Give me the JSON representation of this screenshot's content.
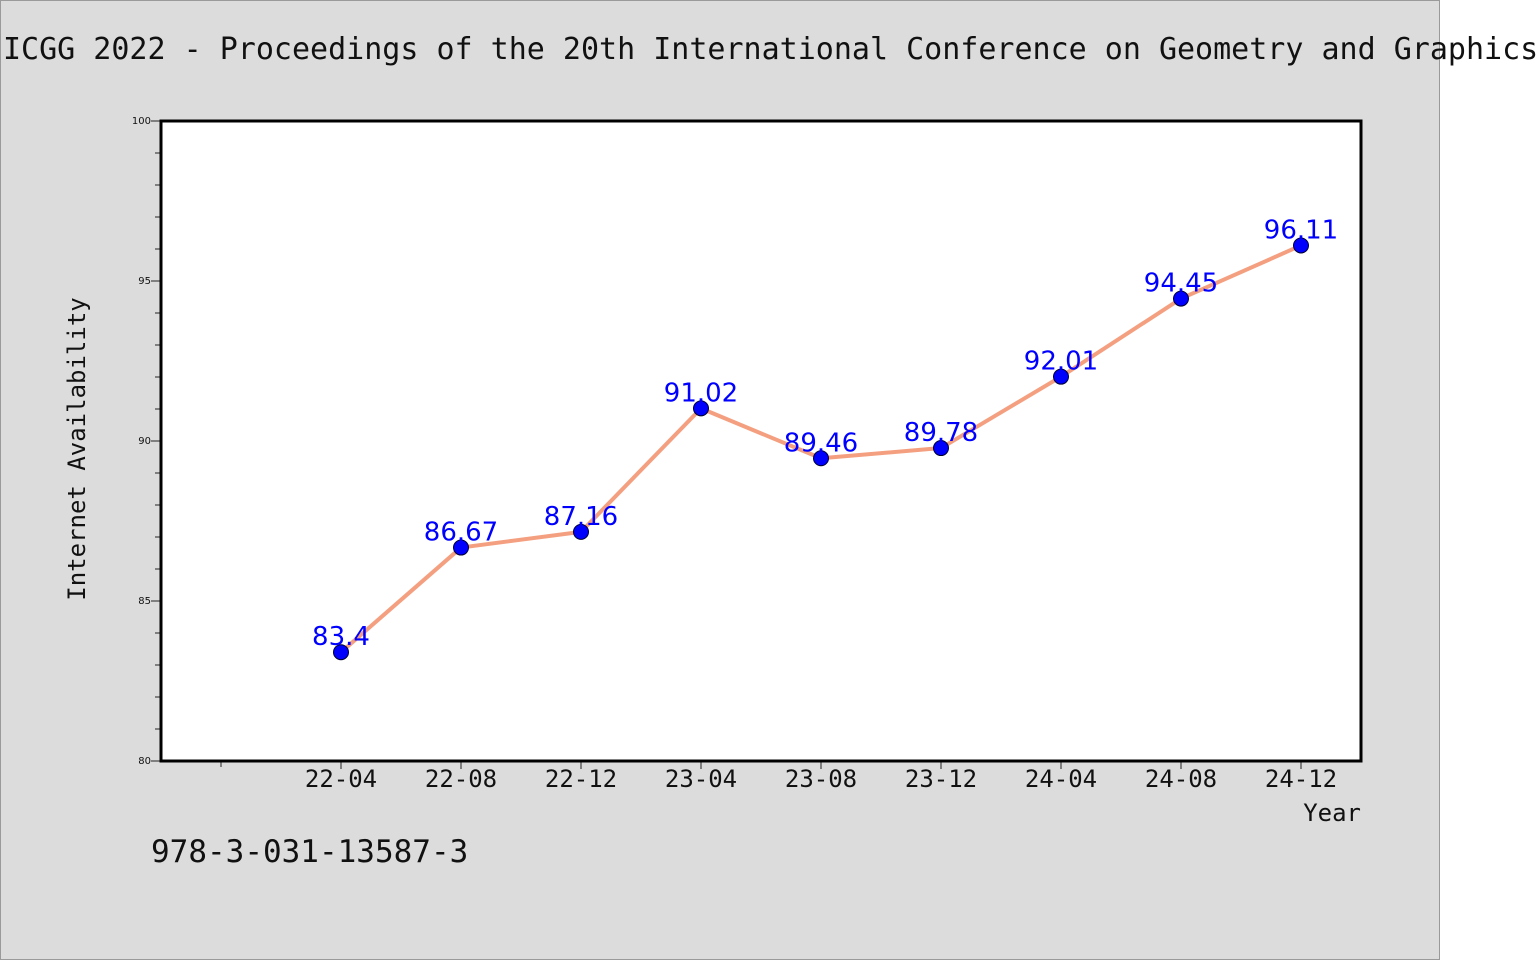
{
  "chart_title": "ICGG 2022 - Proceedings of the 20th International Conference on Geometry and Graphics",
  "footer_text": "978-3-031-13587-3",
  "chart_data": {
    "type": "line",
    "title": "ICGG 2022 - Proceedings of the 20th International Conference on Geometry and Graphics",
    "xlabel": "Year",
    "ylabel": "Internet Availability",
    "categories": [
      "22-04",
      "22-08",
      "22-12",
      "23-04",
      "23-08",
      "23-12",
      "24-04",
      "24-08",
      "24-12"
    ],
    "series": [
      {
        "values": [
          83.4,
          86.67,
          87.16,
          91.02,
          89.46,
          89.78,
          92.01,
          94.45,
          96.11
        ],
        "labels": [
          "83.4",
          "86.67",
          "87.16",
          "91.02",
          "89.46",
          "89.78",
          "92.01",
          "94.45",
          "96.11"
        ]
      }
    ],
    "ylim": [
      80,
      100
    ],
    "y_ticks": [
      80,
      85,
      90,
      95,
      100
    ],
    "y_tick_labels": [
      "80",
      "85",
      "90",
      "95",
      "100"
    ],
    "grid": false,
    "legend": "none",
    "colors": {
      "line": "#f4a080",
      "marker": "#0000ff",
      "data_label": "#0000ff",
      "background": "#dcdcdc",
      "plot_background": "#ffffff"
    }
  }
}
